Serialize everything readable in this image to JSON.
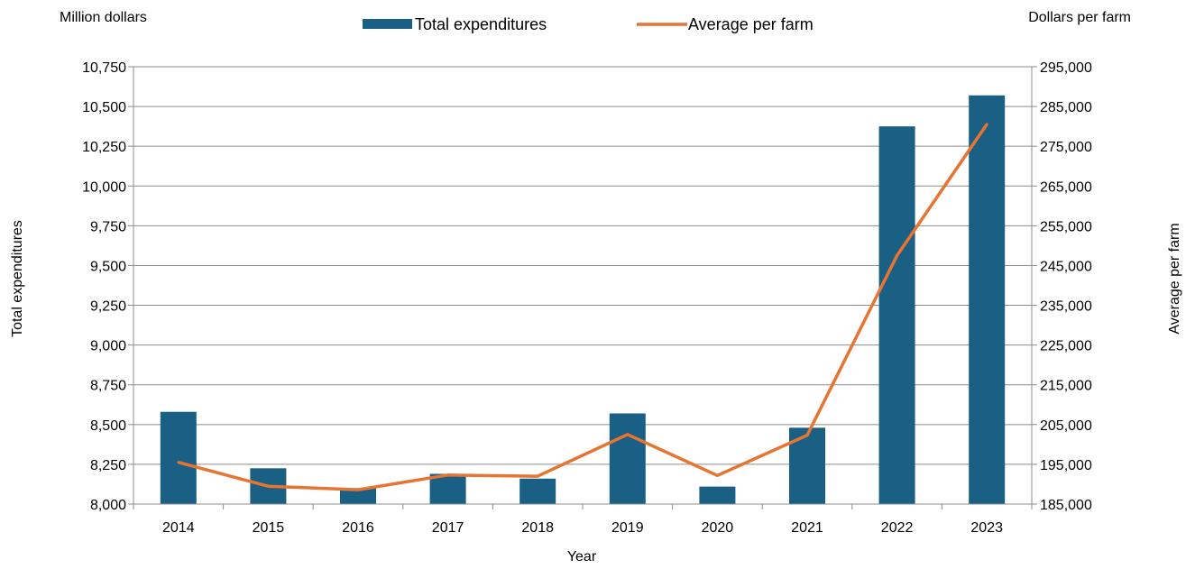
{
  "chart_data": {
    "type": "bar",
    "categories": [
      "2014",
      "2015",
      "2016",
      "2017",
      "2018",
      "2019",
      "2020",
      "2021",
      "2022",
      "2023"
    ],
    "series": [
      {
        "name": "Total expenditures",
        "type": "bar",
        "axis": "left",
        "color": "#1a5f84",
        "values": [
          8580,
          8225,
          8100,
          8190,
          8160,
          8570,
          8110,
          8480,
          10375,
          10570
        ]
      },
      {
        "name": "Average per farm",
        "type": "line",
        "axis": "right",
        "color": "#e87432",
        "values": [
          195500,
          189500,
          188600,
          192300,
          192000,
          202500,
          192200,
          202300,
          247500,
          280500
        ]
      }
    ],
    "left_axis": {
      "unit_label": "Million dollars",
      "title": "Total expenditures",
      "ylim": [
        8000,
        10750
      ],
      "ticks": [
        "8,000",
        "8,250",
        "8,500",
        "8,750",
        "9,000",
        "9,250",
        "9,500",
        "9,750",
        "10,000",
        "10,250",
        "10,500",
        "10,750"
      ]
    },
    "right_axis": {
      "unit_label": "Dollars per farm",
      "title": "Average per farm",
      "ylim": [
        185000,
        295000
      ],
      "ticks": [
        "185,000",
        "195,000",
        "205,000",
        "215,000",
        "225,000",
        "235,000",
        "245,000",
        "255,000",
        "265,000",
        "275,000",
        "285,000",
        "295,000"
      ]
    },
    "xlabel": "Year",
    "grid": true,
    "legend_position": "top-center"
  }
}
